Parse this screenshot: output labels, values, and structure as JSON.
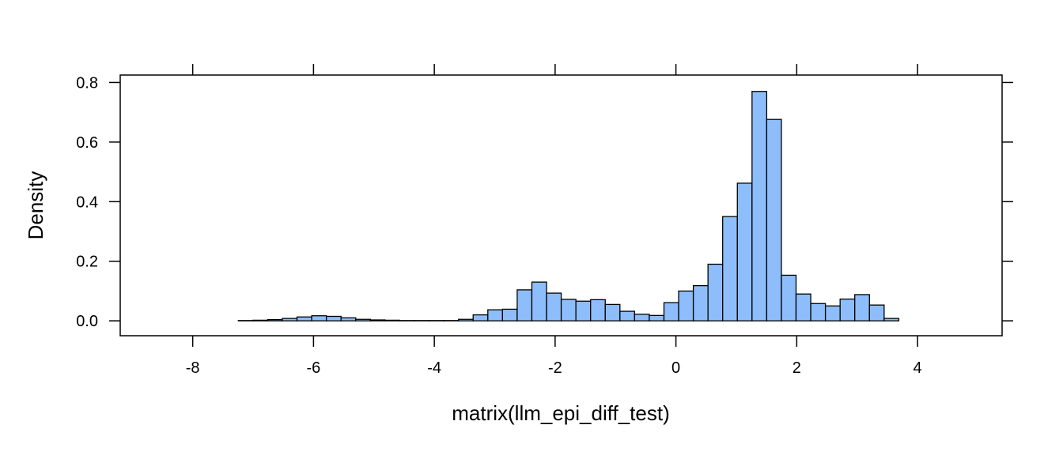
{
  "chart_data": {
    "type": "bar",
    "xlabel": "matrix(llm_epi_diff_test)",
    "ylabel": "Density",
    "xlim": [
      -9.2,
      5.4
    ],
    "ylim": [
      -0.05,
      0.825
    ],
    "x_ticks": [
      -8,
      -6,
      -4,
      -2,
      0,
      2,
      4
    ],
    "x_tick_labels": [
      "-8",
      "-6",
      "-4",
      "-2",
      "0",
      "2",
      "4"
    ],
    "y_ticks": [
      0.0,
      0.2,
      0.4,
      0.6,
      0.8
    ],
    "y_tick_labels": [
      "0.0",
      "0.2",
      "0.4",
      "0.6",
      "0.8"
    ],
    "bin_width": 0.243,
    "bin_start": -8.46,
    "densities": [
      0.0,
      0.0,
      0.0,
      0.0,
      0.0,
      0.001,
      0.002,
      0.004,
      0.008,
      0.013,
      0.017,
      0.015,
      0.01,
      0.005,
      0.003,
      0.002,
      0.001,
      0.001,
      0.001,
      0.001,
      0.005,
      0.02,
      0.037,
      0.039,
      0.104,
      0.13,
      0.093,
      0.072,
      0.066,
      0.071,
      0.055,
      0.032,
      0.022,
      0.018,
      0.061,
      0.1,
      0.118,
      0.19,
      0.35,
      0.462,
      0.77,
      0.676,
      0.153,
      0.09,
      0.058,
      0.05,
      0.073,
      0.088,
      0.053,
      0.008,
      0.0
    ],
    "bar_fill": "#8DBEFB",
    "bar_stroke": "#000000",
    "grid": false,
    "legend": "none"
  }
}
